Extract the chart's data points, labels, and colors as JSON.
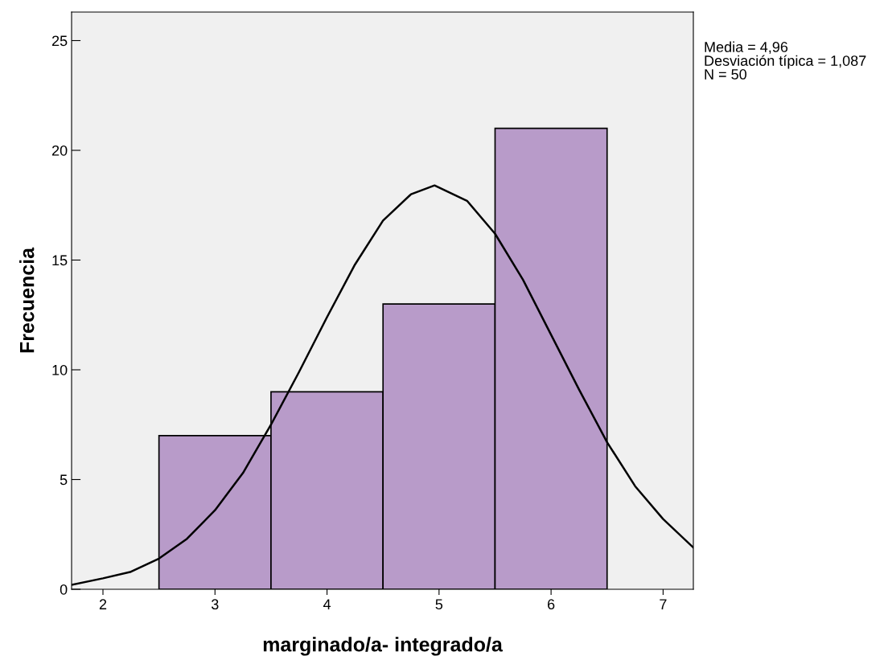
{
  "chart_data": {
    "type": "histogram",
    "xlabel": "marginado/a- integrado/a",
    "ylabel": "Frecuencia",
    "series": [
      {
        "color": "#b89bc9",
        "bins": [
          2.5,
          3.5,
          4.5,
          5.5,
          6.5
        ],
        "values": [
          7,
          9,
          13,
          21
        ]
      },
      {
        "type": "line",
        "color": "#000000",
        "x": [
          1.72,
          2.0,
          2.25,
          2.5,
          2.75,
          3.0,
          3.25,
          3.5,
          3.75,
          4.0,
          4.25,
          4.5,
          4.75,
          4.96,
          5.25,
          5.5,
          5.75,
          6.0,
          6.25,
          6.5,
          6.75,
          7.0,
          7.27
        ],
        "values": [
          0.2,
          0.5,
          0.8,
          1.4,
          2.3,
          3.6,
          5.3,
          7.5,
          9.9,
          12.4,
          14.8,
          16.8,
          18.0,
          18.4,
          17.7,
          16.2,
          14.1,
          11.6,
          9.1,
          6.7,
          4.7,
          3.2,
          1.9
        ]
      }
    ],
    "xlim": [
      1.72,
      7.27
    ],
    "xticks": [
      2,
      3,
      4,
      5,
      6,
      7
    ],
    "ylim": [
      0,
      26.3
    ],
    "yticks": [
      0,
      5,
      10,
      15,
      20,
      25
    ],
    "grid": false,
    "legend": false,
    "annotations": [
      "Media = 4,96",
      "Desviación típica = 1,087",
      "N = 50"
    ]
  }
}
